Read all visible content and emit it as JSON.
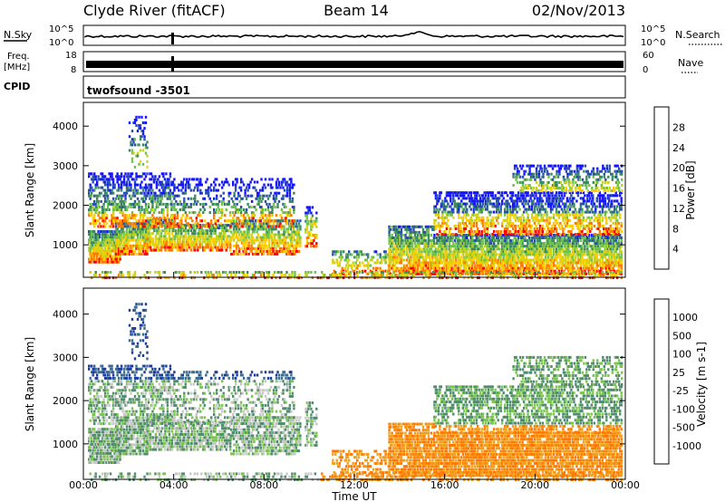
{
  "header": {
    "station": "Clyde River (fitACF)",
    "beam": "Beam 14",
    "date": "02/Nov/2013"
  },
  "labels": {
    "nsky": "N.Sky",
    "nsearch": "N.Search",
    "freq_line1": "Freq.",
    "freq_line2": "[MHz]",
    "nave": "Nave",
    "cpid": "CPID",
    "cpid_value": "twofsound  -3501",
    "xlabel": "Time UT"
  },
  "ticks": {
    "noise_left": [
      "10^5",
      "10^0"
    ],
    "noise_right": [
      "10^5",
      "10^0"
    ],
    "freq_left": [
      "18",
      "8"
    ],
    "nave_right": [
      "60",
      "0"
    ]
  },
  "chart_data": [
    {
      "type": "heatmap",
      "ylabel": "Slant Range [km]",
      "colorbar_label": "Power [dB]",
      "colorbar_ticks": [
        "28",
        "24",
        "20",
        "16",
        "12",
        "8",
        "4"
      ],
      "colorbar_colors": [
        "#ff0000",
        "#ff7800",
        "#ffcc00",
        "#c8d218",
        "#6ec24c",
        "#3a8a5e",
        "#2850a8",
        "#1414ff"
      ],
      "x_ticks": [
        "00:00",
        "04:00",
        "08:00",
        "12:00",
        "16:00",
        "20:00",
        "00:00"
      ],
      "y_ticks": [
        1000,
        2000,
        3000,
        4000
      ],
      "ylim": [
        180,
        4600
      ],
      "xlim": [
        0,
        24
      ]
    },
    {
      "type": "heatmap",
      "ylabel": "Slant Range [km]",
      "colorbar_label": "Velocity  [m s-1]",
      "colorbar_ticks": [
        "1000",
        "500",
        "100",
        "25",
        "-25",
        "-100",
        "-500",
        "-1000"
      ],
      "colorbar_colors": [
        "#1e3ca0",
        "#3a6e8c",
        "#508c6e",
        "#7ac650",
        "#c8c8c8",
        "#f0a020",
        "#ff7800",
        "#ff3c00",
        "#ff0000"
      ],
      "x_ticks": [
        "00:00",
        "04:00",
        "08:00",
        "12:00",
        "16:00",
        "20:00",
        "00:00"
      ],
      "y_ticks": [
        1000,
        2000,
        3000,
        4000
      ],
      "ylim": [
        180,
        4600
      ],
      "xlim": [
        0,
        24
      ]
    }
  ]
}
